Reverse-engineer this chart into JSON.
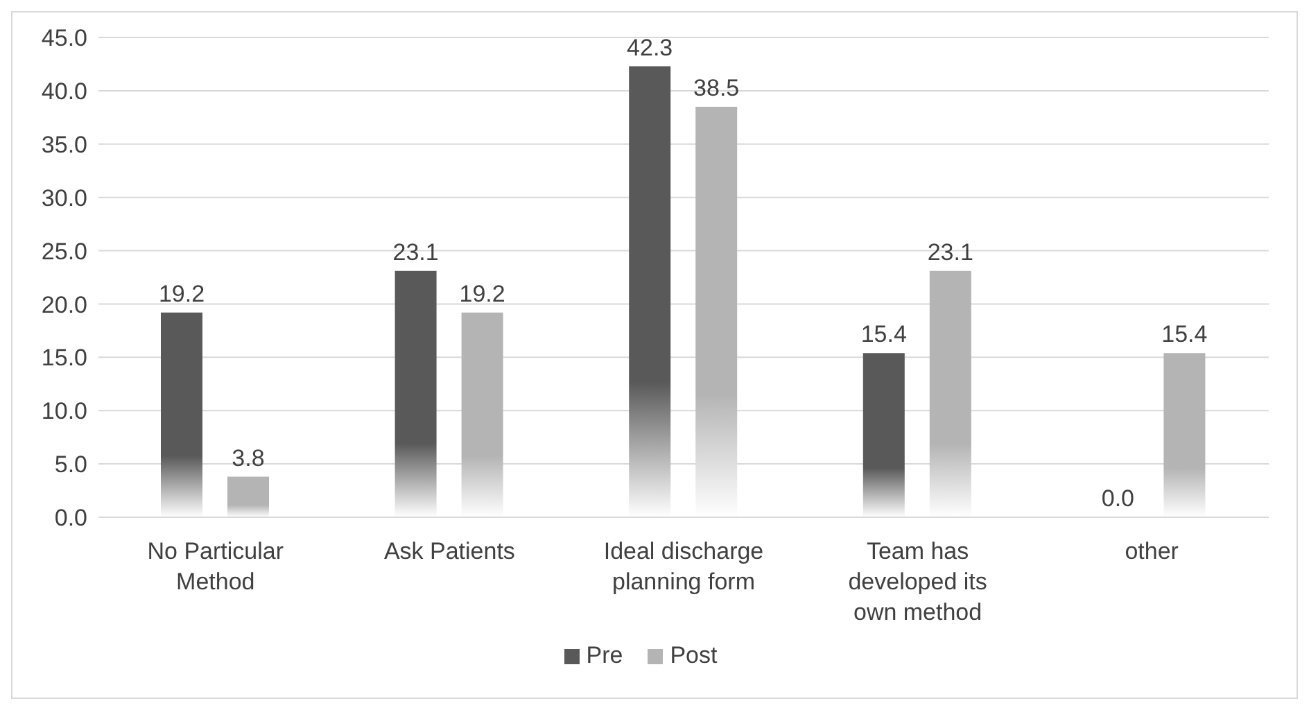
{
  "chart_data": {
    "type": "bar",
    "categories": [
      "No Particular Method",
      "Ask Patients",
      "Ideal discharge planning form",
      "Team has developed its own method",
      "other"
    ],
    "series": [
      {
        "name": "Pre",
        "color": "#595959",
        "values": [
          19.2,
          23.1,
          42.3,
          15.4,
          0.0
        ],
        "value_labels": [
          "19.2",
          "23.1",
          "42.3",
          "15.4",
          "0.0"
        ]
      },
      {
        "name": "Post",
        "color": "#b4b4b4",
        "values": [
          3.8,
          19.2,
          38.5,
          23.1,
          15.4
        ],
        "value_labels": [
          "3.8",
          "19.2",
          "38.5",
          "23.1",
          "15.4"
        ]
      }
    ],
    "ylim": [
      0,
      45
    ],
    "yticks": [
      {
        "value": 0,
        "label": "0.0"
      },
      {
        "value": 5,
        "label": "5.0"
      },
      {
        "value": 10,
        "label": "10.0"
      },
      {
        "value": 15,
        "label": "15.0"
      },
      {
        "value": 20,
        "label": "20.0"
      },
      {
        "value": 25,
        "label": "25.0"
      },
      {
        "value": 30,
        "label": "30.0"
      },
      {
        "value": 35,
        "label": "35.0"
      },
      {
        "value": 40,
        "label": "40.0"
      },
      {
        "value": 45,
        "label": "45.0"
      }
    ],
    "grid": "y",
    "legend": "bottom"
  }
}
